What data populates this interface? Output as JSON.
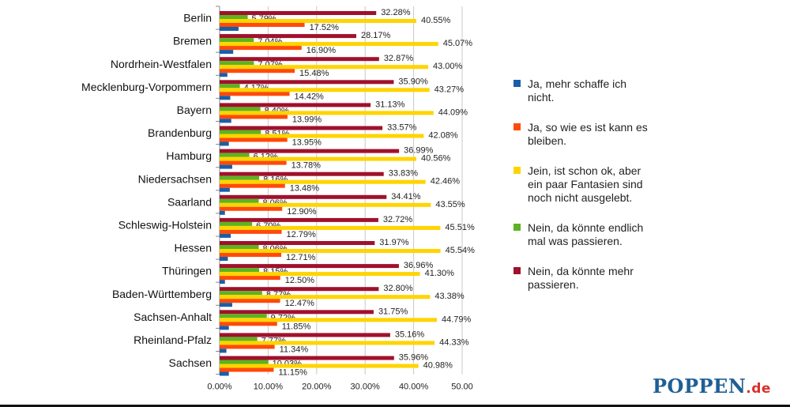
{
  "chart_data": {
    "type": "bar",
    "orientation": "horizontal",
    "categories": [
      "Berlin",
      "Bremen",
      "Nordrhein-Westfalen",
      "Mecklenburg-Vorpommern",
      "Bayern",
      "Brandenburg",
      "Hamburg",
      "Niedersachsen",
      "Saarland",
      "Schleswig-Holstein",
      "Hessen",
      "Thüringen",
      "Baden-Württemberg",
      "Sachsen-Anhalt",
      "Rheinland-Pfalz",
      "Sachsen"
    ],
    "series": [
      {
        "name": "Nein, da könnte mehr passieren.",
        "color": "#a0112b",
        "labeled": true,
        "values": [
          32.28,
          28.17,
          32.87,
          35.9,
          31.13,
          33.57,
          36.99,
          33.83,
          34.41,
          32.72,
          31.97,
          36.96,
          32.8,
          31.75,
          35.16,
          35.96
        ]
      },
      {
        "name": "Nein, da könnte endlich mal was passieren.",
        "color": "#5cb322",
        "labeled": true,
        "values": [
          5.79,
          7.04,
          7.07,
          4.17,
          8.4,
          8.51,
          6.12,
          8.16,
          8.06,
          6.7,
          8.06,
          8.15,
          8.77,
          9.72,
          7.77,
          10.03
        ]
      },
      {
        "name": "Jein, ist schon ok, aber ein paar Fantasien sind noch nicht ausgelebt.",
        "color": "#ffd400",
        "labeled": true,
        "values": [
          40.55,
          45.07,
          43.0,
          43.27,
          44.09,
          42.08,
          40.56,
          42.46,
          43.55,
          45.51,
          45.54,
          41.3,
          43.38,
          44.79,
          44.33,
          40.98
        ]
      },
      {
        "name": "Ja, so wie es ist kann es bleiben.",
        "color": "#ff4a0a",
        "labeled": true,
        "values": [
          17.52,
          16.9,
          15.48,
          14.42,
          13.99,
          13.95,
          13.78,
          13.48,
          12.9,
          12.79,
          12.71,
          12.5,
          12.47,
          11.85,
          11.34,
          11.15
        ]
      },
      {
        "name": "Ja, mehr schaffe ich nicht.",
        "color": "#1a5ea8",
        "labeled": false,
        "values": [
          3.9,
          2.8,
          1.6,
          2.2,
          2.4,
          1.9,
          2.6,
          2.1,
          1.1,
          2.3,
          1.7,
          1.1,
          2.6,
          1.9,
          1.4,
          1.9
        ]
      }
    ],
    "value_labels": [
      [
        "32.28%",
        "28.17%",
        "32.87%",
        "35.90%",
        "31.13%",
        "33.57%",
        "36.99%",
        "33.83%",
        "34.41%",
        "32.72%",
        "31.97%",
        "36.96%",
        "32.80%",
        "31.75%",
        "35.16%",
        "35.96%"
      ],
      [
        "5.79%",
        "7.04%",
        "7.07%",
        "4.17%",
        "8.40%",
        "8.51%",
        "6.12%",
        "8.16%",
        "8.06%",
        "6.70%",
        "8.06%",
        "8.15%",
        "8.77%",
        "9.72%",
        "7.77%",
        "10.03%"
      ],
      [
        "40.55%",
        "45.07%",
        "43.00%",
        "43.27%",
        "44.09%",
        "42.08%",
        "40.56%",
        "42.46%",
        "43.55%",
        "45.51%",
        "45.54%",
        "41.30%",
        "43.38%",
        "44.79%",
        "44.33%",
        "40.98%"
      ],
      [
        "17.52%",
        "16.90%",
        "15.48%",
        "14.42%",
        "13.99%",
        "13.95%",
        "13.78%",
        "13.48%",
        "12.90%",
        "12.79%",
        "12.71%",
        "12.50%",
        "12.47%",
        "11.85%",
        "11.34%",
        "11.15%"
      ]
    ],
    "x_ticks": [
      "0.00%",
      "10.00%",
      "20.00%",
      "30.00%",
      "40.00%",
      "50.00"
    ],
    "xlim": [
      0,
      50
    ],
    "grid": true,
    "legend_position": "right",
    "legend": [
      {
        "label": "Ja, mehr schaffe ich nicht.",
        "color": "#1a5ea8"
      },
      {
        "label": "Ja, so wie es ist kann es bleiben.",
        "color": "#ff4a0a"
      },
      {
        "label": "Jein, ist schon ok, aber ein paar Fantasien sind noch nicht ausgelebt.",
        "color": "#ffd400"
      },
      {
        "label": "Nein, da könnte endlich mal was passieren.",
        "color": "#5cb322"
      },
      {
        "label": "Nein, da könnte mehr passieren.",
        "color": "#a0112b"
      }
    ]
  },
  "logo": {
    "name": "POPPEN",
    "tld": ".de"
  }
}
